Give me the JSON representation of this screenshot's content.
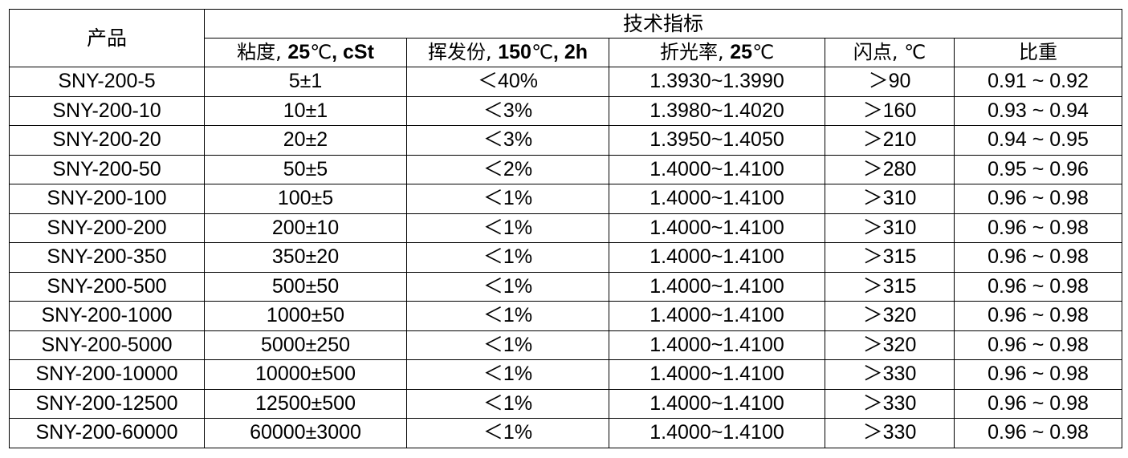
{
  "table": {
    "product_header": "产品",
    "group_header": "技术指标",
    "columns": [
      {
        "cjk": "粘度, ",
        "bold": "25",
        "mid": "℃",
        "bold2": ", cSt"
      },
      {
        "cjk": "挥发份, ",
        "bold": "150",
        "mid": "℃",
        "bold2": ", 2h"
      },
      {
        "cjk": "折光率, ",
        "bold": "25",
        "mid": "℃",
        "bold2": ""
      },
      {
        "cjk": "闪点, ",
        "bold": "",
        "mid": "℃",
        "bold2": ""
      },
      {
        "cjk": "比重",
        "bold": "",
        "mid": "",
        "bold2": ""
      }
    ],
    "rows": [
      [
        "SNY-200-5",
        "5±1",
        "＜40%",
        "1.3930~1.3990",
        "＞90",
        "0.91 ~ 0.92"
      ],
      [
        "SNY-200-10",
        "10±1",
        "＜3%",
        "1.3980~1.4020",
        "＞160",
        "0.93 ~ 0.94"
      ],
      [
        "SNY-200-20",
        "20±2",
        "＜3%",
        "1.3950~1.4050",
        "＞210",
        "0.94 ~ 0.95"
      ],
      [
        "SNY-200-50",
        "50±5",
        "＜2%",
        "1.4000~1.4100",
        "＞280",
        "0.95 ~ 0.96"
      ],
      [
        "SNY-200-100",
        "100±5",
        "＜1%",
        "1.4000~1.4100",
        "＞310",
        "0.96 ~ 0.98"
      ],
      [
        "SNY-200-200",
        "200±10",
        "＜1%",
        "1.4000~1.4100",
        "＞310",
        "0.96 ~ 0.98"
      ],
      [
        "SNY-200-350",
        "350±20",
        "＜1%",
        "1.4000~1.4100",
        "＞315",
        "0.96 ~ 0.98"
      ],
      [
        "SNY-200-500",
        "500±50",
        "＜1%",
        "1.4000~1.4100",
        "＞315",
        "0.96 ~ 0.98"
      ],
      [
        "SNY-200-1000",
        "1000±50",
        "＜1%",
        "1.4000~1.4100",
        "＞320",
        "0.96 ~ 0.98"
      ],
      [
        "SNY-200-5000",
        "5000±250",
        "＜1%",
        "1.4000~1.4100",
        "＞320",
        "0.96 ~ 0.98"
      ],
      [
        "SNY-200-10000",
        "10000±500",
        "＜1%",
        "1.4000~1.4100",
        "＞330",
        "0.96 ~ 0.98"
      ],
      [
        "SNY-200-12500",
        "12500±500",
        "＜1%",
        "1.4000~1.4100",
        "＞330",
        "0.96 ~ 0.98"
      ],
      [
        "SNY-200-60000",
        "60000±3000",
        "＜1%",
        "1.4000~1.4100",
        "＞330",
        "0.96 ~ 0.98"
      ]
    ]
  }
}
